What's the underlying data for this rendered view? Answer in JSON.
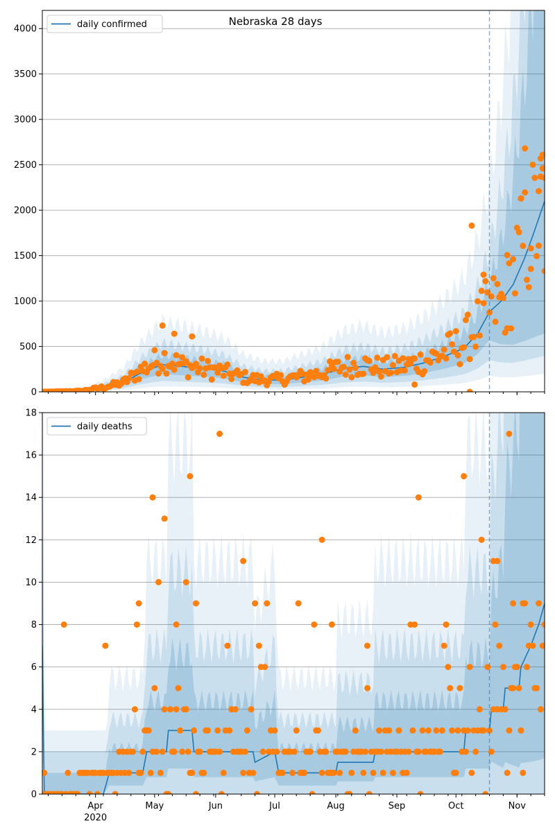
{
  "chart_data": [
    {
      "type": "line",
      "title": "Nebraska 28 days",
      "legend": {
        "label": "daily confirmed",
        "placement": "top-left"
      },
      "ylim": [
        0,
        4200
      ],
      "y_ticks": [
        "0",
        "500",
        "1000",
        "1500",
        "2000",
        "2500",
        "3000",
        "3500",
        "4000"
      ],
      "y_tick_values": [
        0,
        500,
        1000,
        1500,
        2000,
        2500,
        3000,
        3500,
        4000
      ],
      "xlim": [
        "2020-03-05",
        "2020-11-15"
      ],
      "forecast_start": "2020-10-18",
      "grid": "horizontal",
      "colors": {
        "line": "#1f77b4",
        "points": "#ff7f0e",
        "band": "#1f77b4",
        "forecast_line": "#1f77b4"
      },
      "line_anchors": [
        [
          "2020-03-05",
          0
        ],
        [
          "2020-03-25",
          10
        ],
        [
          "2020-04-05",
          50
        ],
        [
          "2020-04-15",
          100
        ],
        [
          "2020-04-25",
          220
        ],
        [
          "2020-05-05",
          300
        ],
        [
          "2020-05-15",
          280
        ],
        [
          "2020-05-25",
          260
        ],
        [
          "2020-06-05",
          230
        ],
        [
          "2020-06-15",
          160
        ],
        [
          "2020-06-25",
          130
        ],
        [
          "2020-07-05",
          130
        ],
        [
          "2020-07-15",
          160
        ],
        [
          "2020-07-25",
          190
        ],
        [
          "2020-08-05",
          260
        ],
        [
          "2020-08-15",
          280
        ],
        [
          "2020-08-25",
          250
        ],
        [
          "2020-09-05",
          270
        ],
        [
          "2020-09-15",
          320
        ],
        [
          "2020-09-25",
          390
        ],
        [
          "2020-10-05",
          480
        ],
        [
          "2020-10-12",
          640
        ],
        [
          "2020-10-18",
          880
        ],
        [
          "2020-10-24",
          1000
        ],
        [
          "2020-10-30",
          1180
        ],
        [
          "2020-11-05",
          1480
        ],
        [
          "2020-11-10",
          1780
        ],
        [
          "2020-11-15",
          2100
        ]
      ],
      "band_levels": [
        {
          "lo": 0.65,
          "hi": 1.35,
          "opacity": 0.2
        },
        {
          "lo": 0.4,
          "hi": 1.8,
          "opacity": 0.15
        },
        {
          "lo": 0.2,
          "hi": 2.6,
          "opacity": 0.1
        }
      ],
      "observed_anchors": [
        [
          "2020-03-05",
          0
        ],
        [
          "2020-03-25",
          10
        ],
        [
          "2020-04-05",
          50
        ],
        [
          "2020-04-15",
          100
        ],
        [
          "2020-04-25",
          250
        ],
        [
          "2020-05-05",
          380
        ],
        [
          "2020-05-15",
          290
        ],
        [
          "2020-05-25",
          260
        ],
        [
          "2020-06-05",
          220
        ],
        [
          "2020-06-15",
          160
        ],
        [
          "2020-06-25",
          130
        ],
        [
          "2020-07-05",
          140
        ],
        [
          "2020-07-15",
          170
        ],
        [
          "2020-07-25",
          210
        ],
        [
          "2020-08-05",
          280
        ],
        [
          "2020-08-15",
          300
        ],
        [
          "2020-08-25",
          260
        ],
        [
          "2020-09-05",
          290
        ],
        [
          "2020-09-15",
          340
        ],
        [
          "2020-09-25",
          430
        ],
        [
          "2020-10-05",
          540
        ],
        [
          "2020-10-18",
          900
        ],
        [
          "2020-10-25",
          980
        ],
        [
          "2020-11-01",
          1400
        ],
        [
          "2020-11-08",
          1800
        ],
        [
          "2020-11-15",
          2000
        ]
      ],
      "outliers": [
        [
          "2020-05-05",
          730
        ],
        [
          "2020-05-11",
          640
        ],
        [
          "2020-05-20",
          610
        ],
        [
          "2020-10-09",
          1830
        ],
        [
          "2020-10-15",
          1290
        ],
        [
          "2020-10-08",
          0
        ],
        [
          "2020-11-05",
          2680
        ],
        [
          "2020-11-14",
          2610
        ],
        [
          "2020-11-13",
          2370
        ],
        [
          "2020-11-12",
          2210
        ],
        [
          "2020-11-03",
          2130
        ],
        [
          "2020-11-08",
          1580
        ],
        [
          "2020-11-15",
          1330
        ],
        [
          "2020-10-27",
          700
        ],
        [
          "2020-09-10",
          80
        ]
      ]
    },
    {
      "type": "line",
      "title": "",
      "legend": {
        "label": "daily deaths",
        "placement": "top-left"
      },
      "ylim": [
        0,
        18
      ],
      "y_ticks": [
        "0",
        "2",
        "4",
        "6",
        "8",
        "10",
        "12",
        "14",
        "16",
        "18"
      ],
      "y_tick_values": [
        0,
        2,
        4,
        6,
        8,
        10,
        12,
        14,
        16,
        18
      ],
      "xlim": [
        "2020-03-05",
        "2020-11-15"
      ],
      "x_ticks": [
        {
          "date": "2020-04-01",
          "label": "Apr"
        },
        {
          "date": "2020-05-01",
          "label": "May"
        },
        {
          "date": "2020-06-01",
          "label": "Jun"
        },
        {
          "date": "2020-07-01",
          "label": "Jul"
        },
        {
          "date": "2020-08-01",
          "label": "Aug"
        },
        {
          "date": "2020-09-01",
          "label": "Sep"
        },
        {
          "date": "2020-10-01",
          "label": "Oct"
        },
        {
          "date": "2020-11-01",
          "label": "Nov"
        }
      ],
      "x_year_label": "2020",
      "forecast_start": "2020-10-18",
      "grid": "horizontal",
      "colors": {
        "line": "#1f77b4",
        "points": "#ff7f0e",
        "band": "#1f77b4",
        "forecast_line": "#1f77b4"
      },
      "line_anchors": [
        [
          "2020-03-05",
          7
        ],
        [
          "2020-03-06",
          0
        ],
        [
          "2020-04-05",
          0
        ],
        [
          "2020-04-08",
          1
        ],
        [
          "2020-04-25",
          1
        ],
        [
          "2020-04-27",
          2
        ],
        [
          "2020-05-07",
          2
        ],
        [
          "2020-05-08",
          3
        ],
        [
          "2020-05-20",
          3
        ],
        [
          "2020-05-21",
          2
        ],
        [
          "2020-06-20",
          2
        ],
        [
          "2020-06-21",
          1.5
        ],
        [
          "2020-07-01",
          2
        ],
        [
          "2020-07-03",
          1
        ],
        [
          "2020-08-01",
          1
        ],
        [
          "2020-08-02",
          1.5
        ],
        [
          "2020-08-20",
          1.5
        ],
        [
          "2020-08-21",
          2
        ],
        [
          "2020-10-01",
          2
        ],
        [
          "2020-10-05",
          2
        ],
        [
          "2020-10-06",
          3
        ],
        [
          "2020-10-18",
          3
        ],
        [
          "2020-10-19",
          4
        ],
        [
          "2020-10-25",
          4
        ],
        [
          "2020-10-26",
          5
        ],
        [
          "2020-11-02",
          5
        ],
        [
          "2020-11-03",
          6
        ],
        [
          "2020-11-08",
          7
        ],
        [
          "2020-11-12",
          8
        ],
        [
          "2020-11-15",
          9
        ]
      ],
      "band_levels": [
        {
          "lo": 0.4,
          "hi": 2.2,
          "opacity": 0.2
        },
        {
          "lo": 0.0,
          "hi": 3.5,
          "opacity": 0.15
        },
        {
          "lo": 0.0,
          "hi": 5.5,
          "opacity": 0.1
        }
      ],
      "observed_anchors": [
        [
          "2020-03-05",
          0
        ],
        [
          "2020-04-10",
          1
        ],
        [
          "2020-05-05",
          3
        ],
        [
          "2020-06-01",
          2
        ],
        [
          "2020-07-01",
          1.5
        ],
        [
          "2020-08-01",
          1.5
        ],
        [
          "2020-09-01",
          2
        ],
        [
          "2020-10-05",
          2.5
        ],
        [
          "2020-10-25",
          4
        ],
        [
          "2020-11-15",
          7
        ]
      ],
      "outliers": [
        [
          "2020-04-30",
          14
        ],
        [
          "2020-05-06",
          13
        ],
        [
          "2020-05-19",
          15
        ],
        [
          "2020-06-03",
          17
        ],
        [
          "2020-07-25",
          12
        ],
        [
          "2020-09-12",
          14
        ],
        [
          "2020-10-05",
          15
        ],
        [
          "2020-10-14",
          12
        ],
        [
          "2020-10-28",
          17
        ],
        [
          "2020-10-20",
          11
        ],
        [
          "2020-10-22",
          11
        ],
        [
          "2020-05-12",
          8
        ],
        [
          "2020-05-17",
          10
        ],
        [
          "2020-06-15",
          11
        ],
        [
          "2020-07-30",
          8
        ],
        [
          "2020-08-17",
          7
        ],
        [
          "2020-04-23",
          9
        ],
        [
          "2020-05-22",
          9
        ],
        [
          "2020-10-30",
          9
        ],
        [
          "2020-11-04",
          9
        ]
      ]
    }
  ]
}
